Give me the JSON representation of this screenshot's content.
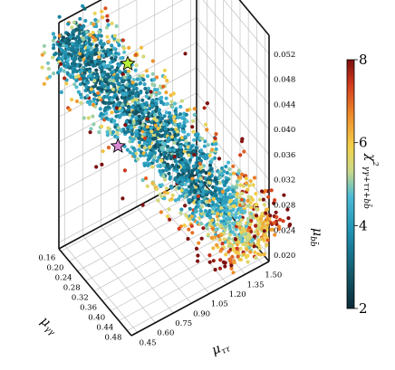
{
  "chart_data": {
    "type": "scatter",
    "dimensions": 3,
    "x_axis": {
      "label": "μγγ",
      "ticks": [
        "0.16",
        "0.20",
        "0.24",
        "0.28",
        "0.32",
        "0.36",
        "0.40",
        "0.44",
        "0.48"
      ],
      "range": [
        0.15,
        0.5
      ]
    },
    "y_axis": {
      "label": "μττ",
      "ticks": [
        "0.45",
        "0.60",
        "0.75",
        "0.90",
        "1.05",
        "1.20",
        "1.35",
        "1.50"
      ],
      "range": [
        0.4,
        1.55
      ]
    },
    "z_axis": {
      "label": "μbb̄",
      "ticks": [
        "0.020",
        "0.024",
        "0.028",
        "0.032",
        "0.036",
        "0.040",
        "0.044",
        "0.048",
        "0.052"
      ],
      "range": [
        0.019,
        0.055
      ]
    },
    "colorbar": {
      "label": "χ²γγ+ττ+bb̄",
      "ticks": [
        "2",
        "4",
        "6",
        "8"
      ],
      "range": [
        2,
        8
      ],
      "colormap": "RdYlBu_r-like (dark teal → blue → yellow → red)"
    },
    "cloud": {
      "description": "dense elongated point cloud running diagonally; low chi2 along the core, higher chi2 at edges and at high μττ",
      "approx_points": 2400,
      "axis_start": {
        "x": 0.16,
        "y": 0.45,
        "z": 0.053
      },
      "axis_end": {
        "x": 0.48,
        "y": 1.5,
        "z": 0.021
      }
    },
    "markers": [
      {
        "name": "green-star",
        "color": "#b8f03a",
        "x": 0.28,
        "y": 0.75,
        "z": 0.05
      },
      {
        "name": "pink-star",
        "color": "#d98bd6",
        "x": 0.32,
        "y": 0.6,
        "z": 0.04
      }
    ],
    "grid": true,
    "legend": "none"
  }
}
